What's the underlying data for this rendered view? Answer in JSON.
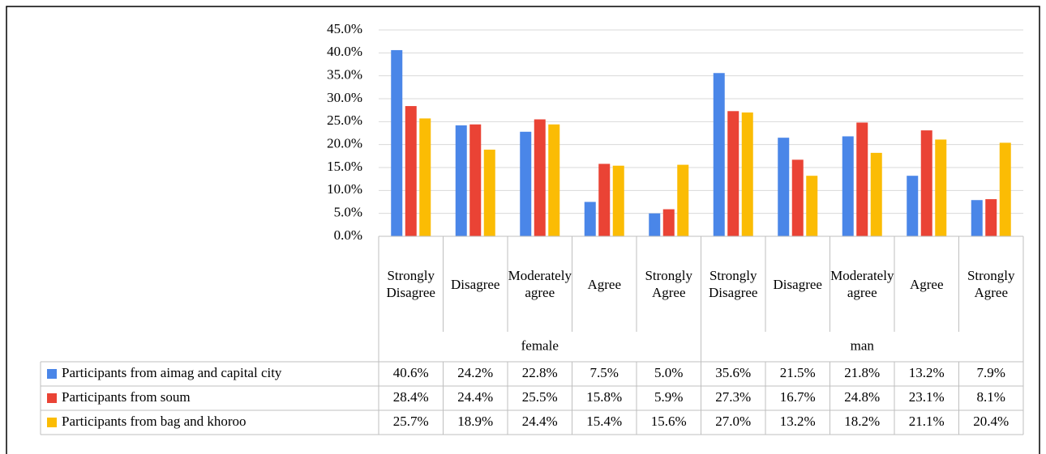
{
  "chart_data": {
    "type": "bar",
    "categories": [
      "Strongly Disagree",
      "Disagree",
      "Moderately agree",
      "Agree",
      "Strongly Agree",
      "Strongly Disagree",
      "Disagree",
      "Moderately agree",
      "Agree",
      "Strongly Agree"
    ],
    "groups": [
      "female",
      "man"
    ],
    "series": [
      {
        "name": "Participants from aimag and capital city",
        "color": "#4a86e8",
        "values": [
          40.6,
          24.2,
          22.8,
          7.5,
          5.0,
          35.6,
          21.5,
          21.8,
          13.2,
          7.9
        ],
        "value_labels": [
          "40.6%",
          "24.2%",
          "22.8%",
          "7.5%",
          "5.0%",
          "35.6%",
          "21.5%",
          "21.8%",
          "13.2%",
          "7.9%"
        ]
      },
      {
        "name": "Participants from soum",
        "color": "#ea4335",
        "values": [
          28.4,
          24.4,
          25.5,
          15.8,
          5.9,
          27.3,
          16.7,
          24.8,
          23.1,
          8.1
        ],
        "value_labels": [
          "28.4%",
          "24.4%",
          "25.5%",
          "15.8%",
          "5.9%",
          "27.3%",
          "16.7%",
          "24.8%",
          "23.1%",
          "8.1%"
        ]
      },
      {
        "name": "Participants from bag and khoroo",
        "color": "#fbbc04",
        "values": [
          25.7,
          18.9,
          24.4,
          15.4,
          15.6,
          27.0,
          13.2,
          18.2,
          21.1,
          20.4
        ],
        "value_labels": [
          "25.7%",
          "18.9%",
          "24.4%",
          "15.4%",
          "15.6%",
          "27.0%",
          "13.2%",
          "18.2%",
          "21.1%",
          "20.4%"
        ]
      }
    ],
    "ylim": [
      0,
      45
    ],
    "yticks": [
      {
        "value": 0,
        "label": "0.0%"
      },
      {
        "value": 5,
        "label": "5.0%"
      },
      {
        "value": 10,
        "label": "10.0%"
      },
      {
        "value": 15,
        "label": "15.0%"
      },
      {
        "value": 20,
        "label": "20.0%"
      },
      {
        "value": 25,
        "label": "25.0%"
      },
      {
        "value": 30,
        "label": "30.0%"
      },
      {
        "value": 35,
        "label": "35.0%"
      },
      {
        "value": 40,
        "label": "40.0%"
      },
      {
        "value": 45,
        "label": "45.0%"
      }
    ],
    "grid": true
  }
}
